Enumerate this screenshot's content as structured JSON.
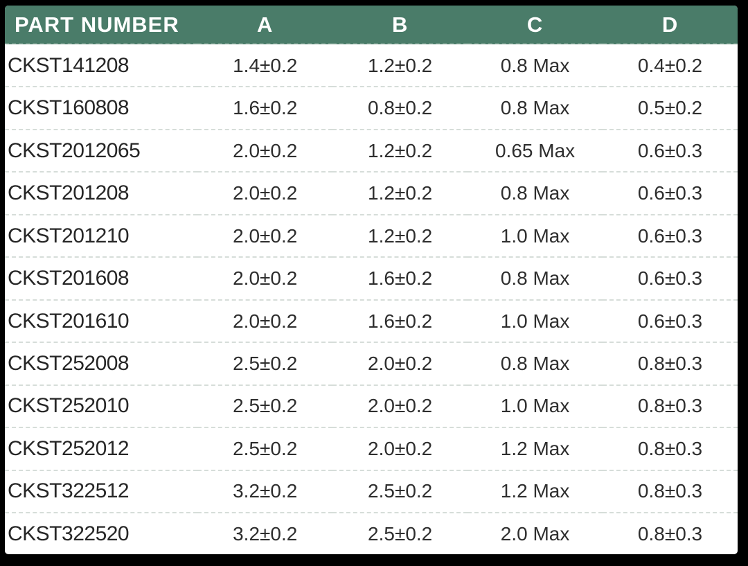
{
  "table": {
    "columns": [
      "PART NUMBER",
      "A",
      "B",
      "C",
      "D"
    ],
    "rows": [
      {
        "part": "CKST141208",
        "a": "1.4±0.2",
        "b": "1.2±0.2",
        "c": "0.8 Max",
        "d": "0.4±0.2"
      },
      {
        "part": "CKST160808",
        "a": "1.6±0.2",
        "b": "0.8±0.2",
        "c": "0.8 Max",
        "d": "0.5±0.2"
      },
      {
        "part": "CKST2012065",
        "a": "2.0±0.2",
        "b": "1.2±0.2",
        "c": "0.65 Max",
        "d": "0.6±0.3"
      },
      {
        "part": "CKST201208",
        "a": "2.0±0.2",
        "b": "1.2±0.2",
        "c": "0.8 Max",
        "d": "0.6±0.3"
      },
      {
        "part": "CKST201210",
        "a": "2.0±0.2",
        "b": "1.2±0.2",
        "c": "1.0 Max",
        "d": "0.6±0.3"
      },
      {
        "part": "CKST201608",
        "a": "2.0±0.2",
        "b": "1.6±0.2",
        "c": "0.8 Max",
        "d": "0.6±0.3"
      },
      {
        "part": "CKST201610",
        "a": "2.0±0.2",
        "b": "1.6±0.2",
        "c": "1.0 Max",
        "d": "0.6±0.3"
      },
      {
        "part": "CKST252008",
        "a": "2.5±0.2",
        "b": "2.0±0.2",
        "c": "0.8 Max",
        "d": "0.8±0.3"
      },
      {
        "part": "CKST252010",
        "a": "2.5±0.2",
        "b": "2.0±0.2",
        "c": "1.0 Max",
        "d": "0.8±0.3"
      },
      {
        "part": "CKST252012",
        "a": "2.5±0.2",
        "b": "2.0±0.2",
        "c": "1.2 Max",
        "d": "0.8±0.3"
      },
      {
        "part": "CKST322512",
        "a": "3.2±0.2",
        "b": "2.5±0.2",
        "c": "1.2 Max",
        "d": "0.8±0.3"
      },
      {
        "part": "CKST322520",
        "a": "3.2±0.2",
        "b": "2.5±0.2",
        "c": "2.0 Max",
        "d": "0.8±0.3"
      }
    ]
  },
  "colors": {
    "frame_bg": "#000000",
    "table_bg": "#ffffff",
    "header_bg": "#4a7c69",
    "header_text": "#ffffff",
    "row_text": "#2e2e2e",
    "part_text": "#262626",
    "divider": "#d6ddd9",
    "divider_header": "#dfe8e3"
  }
}
